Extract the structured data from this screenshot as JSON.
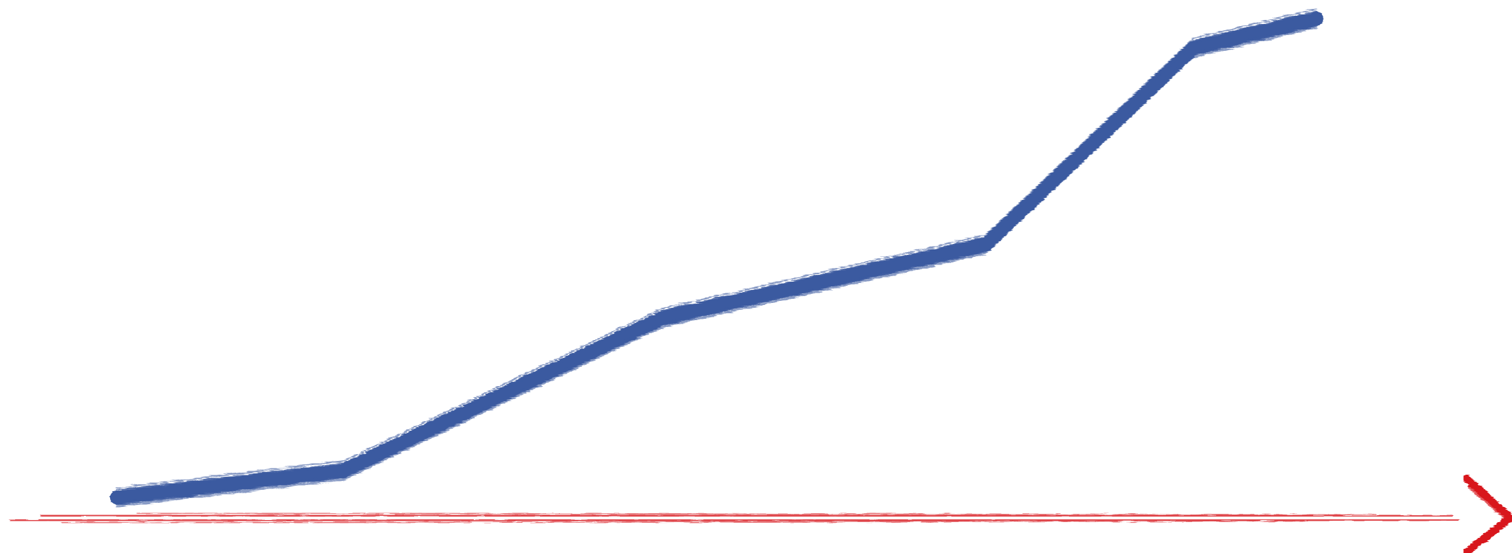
{
  "colors": {
    "series": "#3b5aa0",
    "axis": "#d8161f",
    "background": "#ffffff"
  },
  "chart_data": {
    "type": "line",
    "title": "",
    "xlabel": "",
    "ylabel": "",
    "style": "hand-drawn brush strokes",
    "x_axis_arrow": true,
    "y_axis_visible": false,
    "grid": false,
    "legend": "none",
    "xlim": [
      0,
      10
    ],
    "ylim": [
      0,
      10
    ],
    "series": [
      {
        "x": [
          0,
          1.75,
          4.2,
          6.7,
          8.3,
          9.25
        ],
        "y": [
          0.15,
          0.7,
          3.8,
          5.3,
          9.3,
          9.9
        ]
      }
    ]
  }
}
